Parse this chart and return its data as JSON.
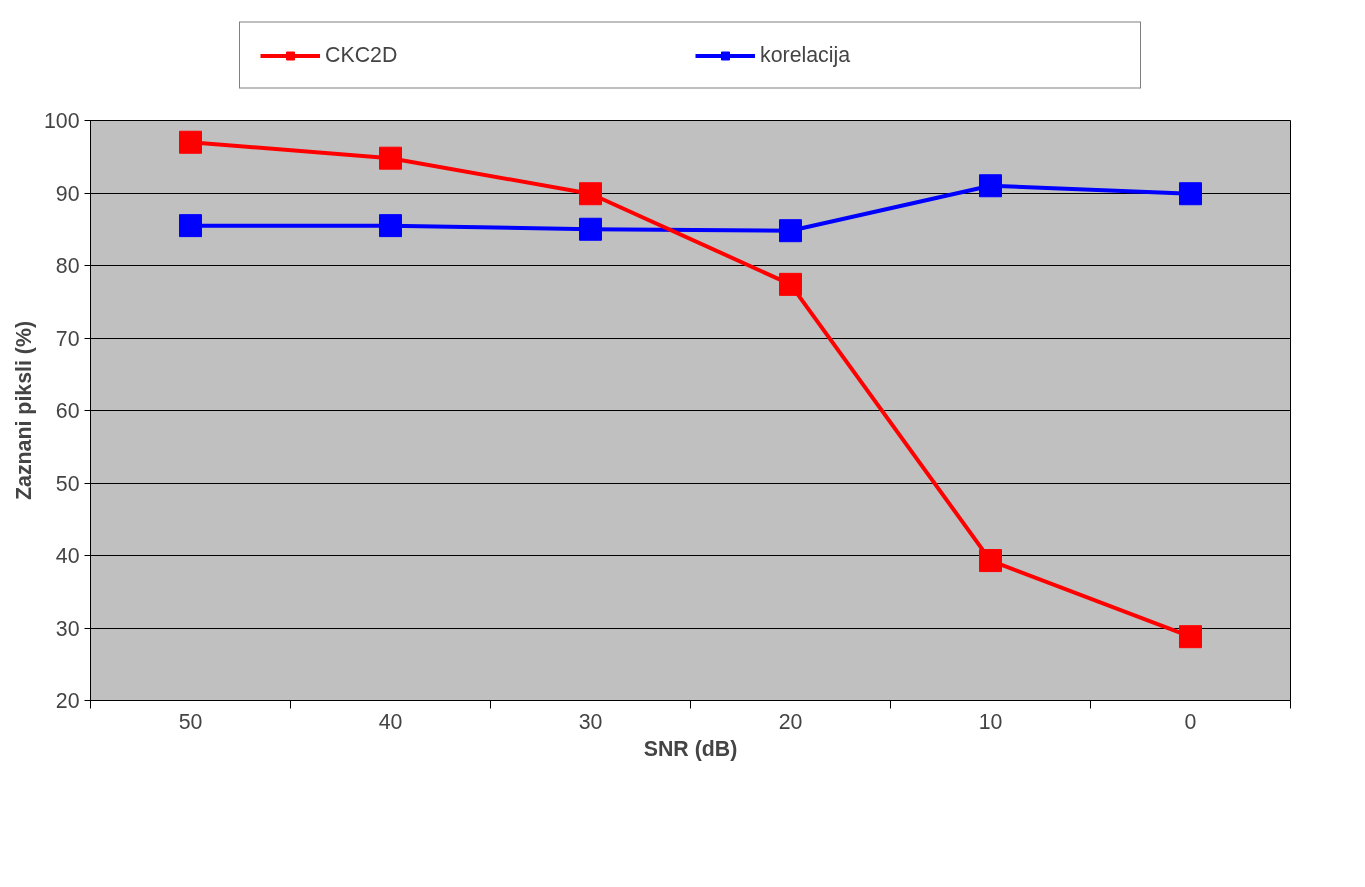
{
  "chart_data": {
    "type": "line",
    "xlabel": "SNR (dB)",
    "ylabel": "Zaznani piksli (%)",
    "categories": [
      "50",
      "40",
      "30",
      "20",
      "10",
      "0"
    ],
    "series": [
      {
        "name": "CKC2D",
        "color": "#ff0000",
        "values": [
          97.0,
          94.8,
          89.9,
          77.4,
          39.3,
          28.8
        ]
      },
      {
        "name": "korelacija",
        "color": "#0000ff",
        "values": [
          85.5,
          85.5,
          85.0,
          84.8,
          91.0,
          89.9
        ]
      }
    ],
    "ylim": [
      20,
      100
    ],
    "yticks": [
      20,
      30,
      40,
      50,
      60,
      70,
      80,
      90,
      100
    ],
    "grid": "y",
    "legend": "top",
    "marker": "square",
    "line_style": "solid"
  }
}
